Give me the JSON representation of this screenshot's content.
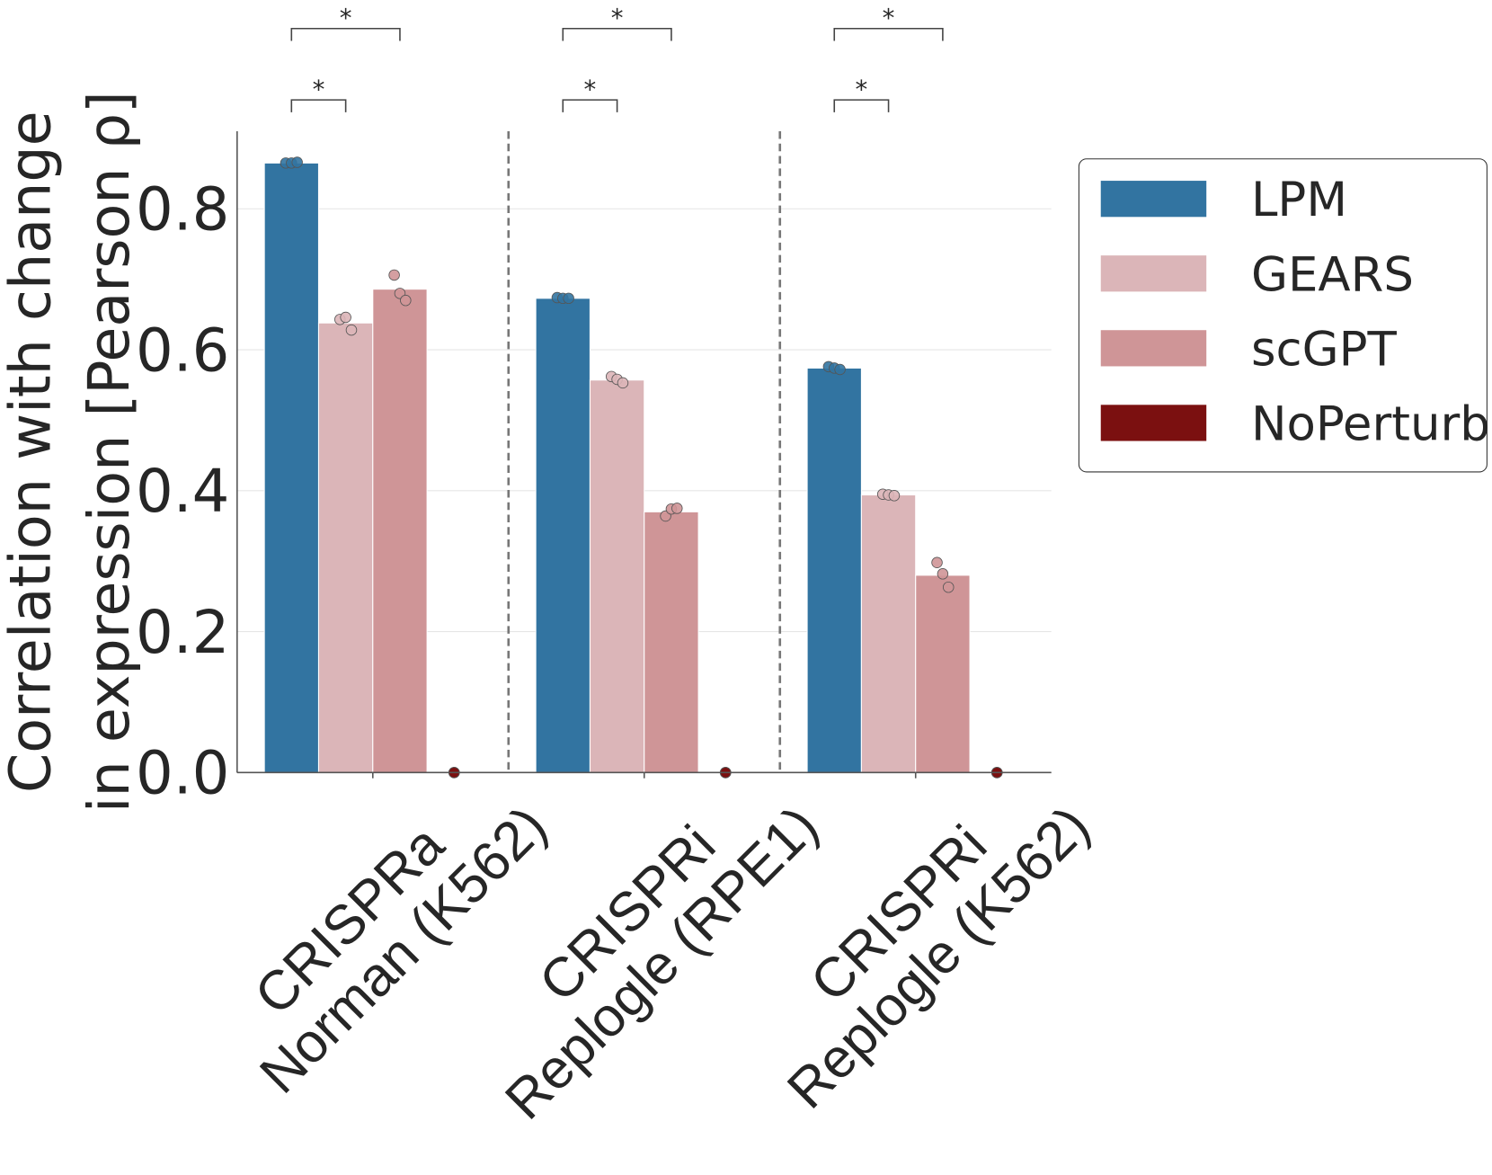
{
  "chart_data": {
    "type": "bar",
    "ylabel": [
      "Correlation with change",
      "in expression [Pearson ρ]"
    ],
    "categories": [
      [
        "CRISPRa",
        "Norman (K562)"
      ],
      [
        "CRISPRi",
        "Replogle (RPE1)"
      ],
      [
        "CRISPRi",
        "Replogle (K562)"
      ]
    ],
    "series": [
      {
        "name": "LPM",
        "color": "#3274a1",
        "values": [
          0.865,
          0.673,
          0.574
        ],
        "points": [
          [
            0.865,
            0.865,
            0.866
          ],
          [
            0.674,
            0.673,
            0.673
          ],
          [
            0.576,
            0.574,
            0.572
          ]
        ]
      },
      {
        "name": "GEARS",
        "color": "#dbb5b8",
        "values": [
          0.638,
          0.557,
          0.394
        ],
        "points": [
          [
            0.643,
            0.646,
            0.628
          ],
          [
            0.562,
            0.558,
            0.553
          ],
          [
            0.395,
            0.394,
            0.393
          ]
        ]
      },
      {
        "name": "scGPT",
        "color": "#cf9597",
        "values": [
          0.686,
          0.37,
          0.28
        ],
        "points": [
          [
            0.706,
            0.68,
            0.67
          ],
          [
            0.364,
            0.374,
            0.375
          ],
          [
            0.298,
            0.282,
            0.263
          ]
        ]
      },
      {
        "name": "NoPerturb",
        "color": "#7b1010",
        "values": [
          0,
          0,
          0
        ],
        "points": [
          [
            0,
            0,
            0
          ],
          [
            0,
            0,
            0
          ],
          [
            0,
            0,
            0
          ]
        ]
      }
    ],
    "significance": [
      {
        "pair": [
          "LPM",
          "GEARS"
        ],
        "label": "*"
      },
      {
        "pair": [
          "LPM",
          "scGPT"
        ],
        "label": "*"
      }
    ],
    "ylim": [
      0,
      0.91
    ],
    "yticks": [
      {
        "value": 0,
        "label": "0.0"
      },
      {
        "value": 0.2,
        "label": "0.2"
      },
      {
        "value": 0.4,
        "label": "0.4"
      },
      {
        "value": 0.6,
        "label": "0.6"
      },
      {
        "value": 0.8,
        "label": "0.8"
      }
    ],
    "grid": true,
    "legend": "upper right"
  }
}
